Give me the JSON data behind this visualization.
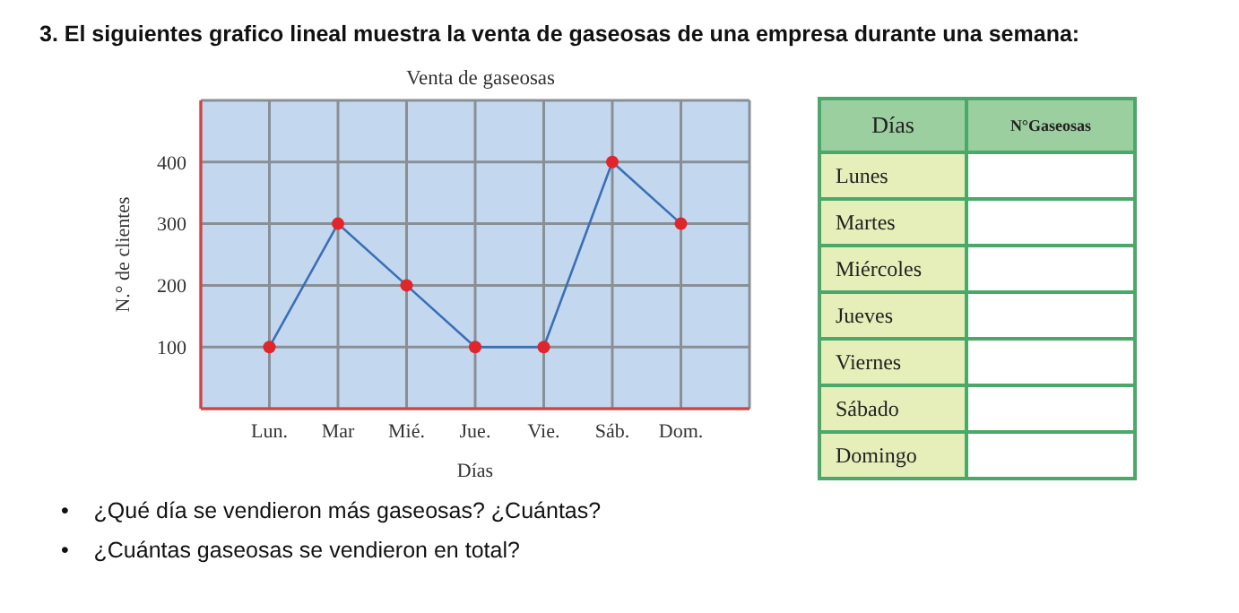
{
  "chart_data": [
    {
      "type": "line",
      "title": "Venta de gaseosas",
      "xlabel": "Días",
      "ylabel": "N.° de clientes",
      "categories": [
        "Lun.",
        "Mar",
        "Mié.",
        "Jue.",
        "Vie.",
        "Sáb.",
        "Dom."
      ],
      "series": [
        {
          "color": "#3b6fb6",
          "colors": [
            "#e0262b",
            "#e0262b",
            "#e0262b",
            "#e0262b",
            "#e0262b",
            "#e0262b",
            "#e0262b"
          ],
          "values": [
            100,
            300,
            200,
            100,
            100,
            400,
            300
          ]
        }
      ],
      "marker": "circle",
      "line_style": "solid",
      "ylim": [
        0,
        500
      ],
      "yticks": [
        {
          "value": 0,
          "label": null
        },
        100,
        200,
        300,
        400,
        {
          "value": 500,
          "label": null
        }
      ],
      "grid": true,
      "annotations": [
        "3. El siguientes grafico lineal muestra la venta de gaseosas de una empresa durante una semana:",
        "•    ¿Qué día se vendieron más gaseosas? ¿Cuántas?",
        "•    ¿Cuántas gaseosas se vendieron en total?"
      ]
    },
    {
      "type": "other",
      "categories": [
        "Días",
        "N°Gaseosas"
      ],
      "y_categories": [
        "Lunes",
        "Martes",
        "Miércoles",
        "Jueves",
        "Viernes",
        "Sábado",
        "Domingo"
      ]
    }
  ]
}
